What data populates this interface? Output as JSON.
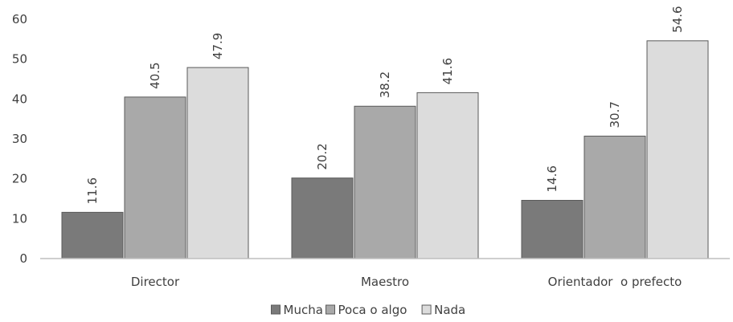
{
  "chart_data": {
    "type": "bar",
    "categories": [
      "Director",
      "Maestro",
      "Orientador  o prefecto"
    ],
    "series": [
      {
        "name": "Mucha",
        "values": [
          11.6,
          20.2,
          14.6
        ],
        "color": "#7a7a7a"
      },
      {
        "name": "Poca o algo",
        "values": [
          40.5,
          38.2,
          30.7
        ],
        "color": "#a9a9a9"
      },
      {
        "name": "Nada",
        "values": [
          47.9,
          41.6,
          54.6
        ],
        "color": "#dcdcdc"
      }
    ],
    "y_ticks": [
      "0",
      "10",
      "20",
      "30",
      "40",
      "50",
      "60"
    ],
    "ylim": [
      0,
      60
    ],
    "grid": false,
    "legend_position": "bottom",
    "data_labels": true,
    "data_label_rotation": "vertical"
  }
}
